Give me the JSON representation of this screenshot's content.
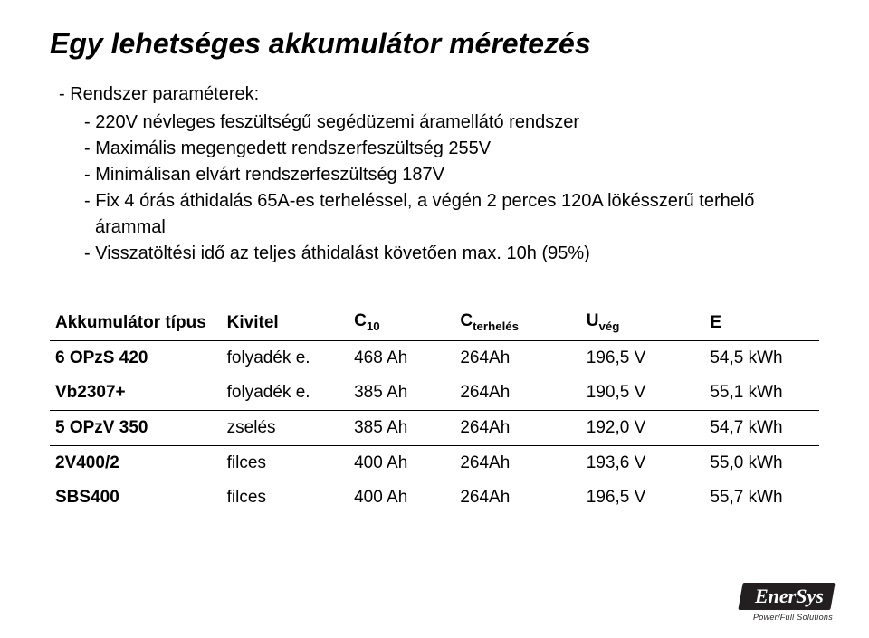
{
  "title": "Egy lehetséges akkumulátor méretezés",
  "bullets": {
    "l1": "- Rendszer paraméterek:",
    "l2a": "- 220V névleges feszültségű segédüzemi áramellátó rendszer",
    "l2b": "- Maximális megengedett rendszerfeszültség 255V",
    "l2c": "- Minimálisan elvárt rendszerfeszültség 187V",
    "l2d": "- Fix 4 órás áthidalás 65A-es terheléssel, a végén 2 perces 120A lökésszerű terhelő",
    "l2d_cont": "árammal",
    "l2e": "- Visszatöltési idő az teljes áthidalást követően max. 10h (95%)"
  },
  "table": {
    "headers": {
      "type": "Akkumulátor típus",
      "kivitel": "Kivitel",
      "c10_label": "C",
      "c10_sub": "10",
      "cth_label": "C",
      "cth_sub": "terhelés",
      "uveg_label": "U",
      "uveg_sub": "vég",
      "e": "E"
    },
    "rows": [
      {
        "type": "6 OPzS 420",
        "kiv": "folyadék e.",
        "c10": "468 Ah",
        "cth": "264Ah",
        "uveg": "196,5 V",
        "e": "54,5 kWh",
        "sep": false
      },
      {
        "type": "Vb2307+",
        "kiv": "folyadék e.",
        "c10": "385 Ah",
        "cth": "264Ah",
        "uveg": "190,5 V",
        "e": "55,1 kWh",
        "sep": true
      },
      {
        "type": "5 OPzV 350",
        "kiv": "zselés",
        "c10": "385 Ah",
        "cth": "264Ah",
        "uveg": "192,0 V",
        "e": "54,7 kWh",
        "sep": true
      },
      {
        "type": "2V400/2",
        "kiv": "filces",
        "c10": "400 Ah",
        "cth": "264Ah",
        "uveg": "193,6 V",
        "e": "55,0 kWh",
        "sep": false
      },
      {
        "type": "SBS400",
        "kiv": "filces",
        "c10": "400 Ah",
        "cth": "264Ah",
        "uveg": "196,5 V",
        "e": "55,7 kWh",
        "sep": false
      }
    ]
  },
  "logo": {
    "brand": "EnerSys",
    "tagline": "Power/Full Solutions"
  }
}
